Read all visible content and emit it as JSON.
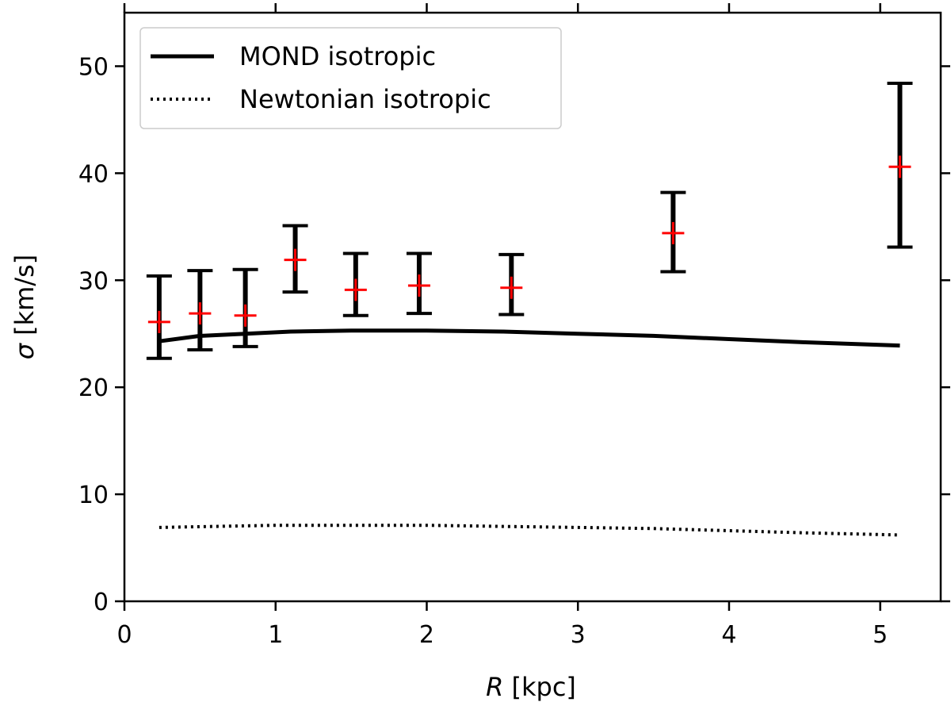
{
  "chart_data": {
    "type": "line",
    "title": "",
    "xlabel": "R [kpc]",
    "xlabel_italic": "R",
    "xlabel_rest": " [kpc]",
    "ylabel": "σ [km/s]",
    "ylabel_italic": "σ",
    "ylabel_rest": " [km/s]",
    "xlim": [
      0,
      5.4
    ],
    "ylim": [
      0,
      55
    ],
    "xticks": [
      0,
      1,
      2,
      3,
      4,
      5
    ],
    "xtick_labels": [
      "0",
      "1",
      "2",
      "3",
      "4",
      "5"
    ],
    "yticks": [
      0,
      10,
      20,
      30,
      40,
      50
    ],
    "ytick_labels": [
      "0",
      "10",
      "20",
      "30",
      "40",
      "50"
    ],
    "grid": false,
    "legend_position": "top-left",
    "series": [
      {
        "name": "MOND isotropic",
        "style": "solid",
        "color": "#000000",
        "x": [
          0.23,
          0.5,
          0.8,
          1.1,
          1.5,
          2.0,
          2.5,
          3.0,
          3.5,
          4.0,
          4.5,
          5.13
        ],
        "y": [
          24.3,
          24.8,
          25.0,
          25.2,
          25.3,
          25.3,
          25.2,
          25.0,
          24.8,
          24.5,
          24.2,
          23.9
        ]
      },
      {
        "name": "Newtonian isotropic",
        "style": "dotted",
        "color": "#000000",
        "x": [
          0.23,
          0.6,
          1.0,
          1.5,
          2.0,
          2.5,
          3.0,
          3.5,
          4.0,
          4.5,
          5.13
        ],
        "y": [
          6.9,
          7.0,
          7.1,
          7.1,
          7.1,
          7.0,
          6.9,
          6.8,
          6.6,
          6.4,
          6.2
        ]
      }
    ],
    "observations": {
      "marker_color": "#ff0000",
      "errorbar_color": "#000000",
      "points": [
        {
          "x": 0.23,
          "y": 26.1,
          "low": 22.7,
          "high": 30.4
        },
        {
          "x": 0.5,
          "y": 26.9,
          "low": 23.5,
          "high": 30.9
        },
        {
          "x": 0.8,
          "y": 26.7,
          "low": 23.8,
          "high": 31.0
        },
        {
          "x": 1.13,
          "y": 31.9,
          "low": 28.9,
          "high": 35.1
        },
        {
          "x": 1.53,
          "y": 29.1,
          "low": 26.7,
          "high": 32.5
        },
        {
          "x": 1.95,
          "y": 29.5,
          "low": 26.9,
          "high": 32.5
        },
        {
          "x": 2.56,
          "y": 29.3,
          "low": 26.8,
          "high": 32.4
        },
        {
          "x": 3.63,
          "y": 34.4,
          "low": 30.8,
          "high": 38.2
        },
        {
          "x": 5.13,
          "y": 40.6,
          "low": 33.1,
          "high": 48.4
        }
      ]
    }
  }
}
